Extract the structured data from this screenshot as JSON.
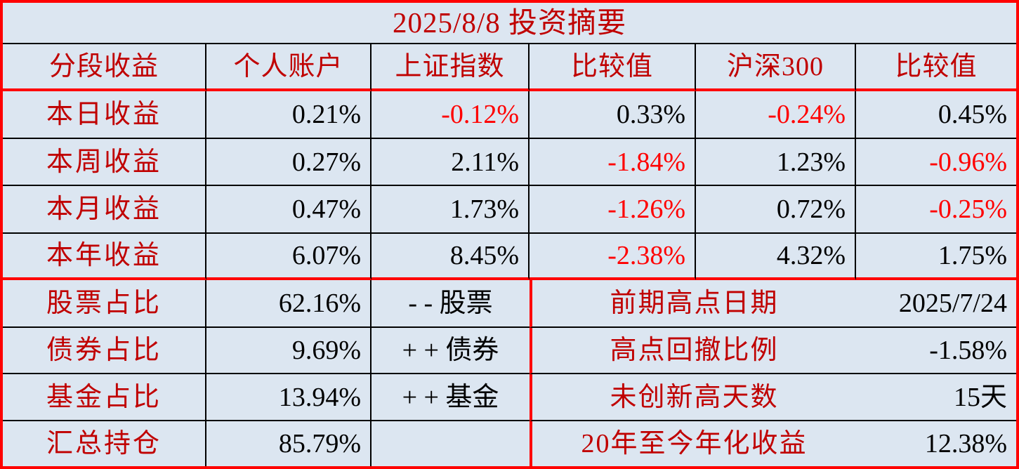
{
  "title": "2025/8/8 投资摘要",
  "colors": {
    "background": "#dce6f1",
    "label_red": "#c00000",
    "negative_red": "#ff0000",
    "value_black": "#000000",
    "thick_border": "#ff0000",
    "thin_border": "#000000"
  },
  "headers": [
    "分段收益",
    "个人账户",
    "上证指数",
    "比较值",
    "沪深300",
    "比较值"
  ],
  "perf": {
    "rows": [
      {
        "label": "本日收益",
        "cells": [
          {
            "text": "0.21%",
            "tone": "pos"
          },
          {
            "text": "-0.12%",
            "tone": "neg"
          },
          {
            "text": "0.33%",
            "tone": "pos"
          },
          {
            "text": "-0.24%",
            "tone": "neg"
          },
          {
            "text": "0.45%",
            "tone": "pos"
          }
        ]
      },
      {
        "label": "本周收益",
        "cells": [
          {
            "text": "0.27%",
            "tone": "pos"
          },
          {
            "text": "2.11%",
            "tone": "pos"
          },
          {
            "text": "-1.84%",
            "tone": "neg"
          },
          {
            "text": "1.23%",
            "tone": "pos"
          },
          {
            "text": "-0.96%",
            "tone": "neg"
          }
        ]
      },
      {
        "label": "本月收益",
        "cells": [
          {
            "text": "0.47%",
            "tone": "pos"
          },
          {
            "text": "1.73%",
            "tone": "pos"
          },
          {
            "text": "-1.26%",
            "tone": "neg"
          },
          {
            "text": "0.72%",
            "tone": "pos"
          },
          {
            "text": "-0.25%",
            "tone": "neg"
          }
        ]
      },
      {
        "label": "本年收益",
        "cells": [
          {
            "text": "6.07%",
            "tone": "pos"
          },
          {
            "text": "8.45%",
            "tone": "pos"
          },
          {
            "text": "-2.38%",
            "tone": "neg"
          },
          {
            "text": "4.32%",
            "tone": "pos"
          },
          {
            "text": "1.75%",
            "tone": "pos"
          }
        ]
      }
    ]
  },
  "holdings": {
    "rows": [
      {
        "label": "股票占比",
        "value": "62.16%",
        "note": "- - 股票"
      },
      {
        "label": "债券占比",
        "value": "9.69%",
        "note": "+ + 债券"
      },
      {
        "label": "基金占比",
        "value": "13.94%",
        "note": "+ + 基金"
      },
      {
        "label": "汇总持仓",
        "value": "85.79%",
        "note": ""
      }
    ]
  },
  "stats": {
    "rows": [
      {
        "label": "前期高点日期",
        "value": "2025/7/24"
      },
      {
        "label": "高点回撤比例",
        "value": "-1.58%"
      },
      {
        "label": "未创新高天数",
        "value": "15天"
      },
      {
        "label": "20年至今年化收益",
        "value": "12.38%"
      }
    ]
  }
}
